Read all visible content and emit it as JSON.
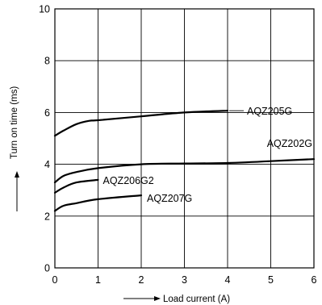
{
  "chart_data": {
    "type": "line",
    "title": "",
    "xlabel": "Load current (A)",
    "ylabel": "Turn on time (ms)",
    "xlim": [
      0,
      6
    ],
    "ylim": [
      0,
      10
    ],
    "x_ticks": [
      0,
      1,
      2,
      3,
      4,
      5,
      6
    ],
    "y_ticks": [
      0,
      2,
      4,
      6,
      8,
      10
    ],
    "grid": true,
    "legend": "inline labels",
    "series": [
      {
        "name": "AQZ205G",
        "x": [
          0,
          0.2,
          0.5,
          0.8,
          1.0,
          2.0,
          3.0,
          4.0
        ],
        "y": [
          5.1,
          5.3,
          5.55,
          5.68,
          5.7,
          5.85,
          6.0,
          6.07
        ]
      },
      {
        "name": "AQZ202G",
        "x": [
          0,
          0.2,
          0.5,
          1.0,
          2.0,
          3.0,
          4.0,
          5.0,
          6.0
        ],
        "y": [
          3.3,
          3.55,
          3.7,
          3.85,
          4.0,
          4.03,
          4.05,
          4.12,
          4.2
        ]
      },
      {
        "name": "AQZ206G2",
        "x": [
          0,
          0.2,
          0.5,
          1.0
        ],
        "y": [
          2.9,
          3.1,
          3.3,
          3.4
        ]
      },
      {
        "name": "AQZ207G",
        "x": [
          0,
          0.2,
          0.5,
          1.0,
          2.0
        ],
        "y": [
          2.2,
          2.4,
          2.5,
          2.65,
          2.8
        ]
      }
    ]
  }
}
